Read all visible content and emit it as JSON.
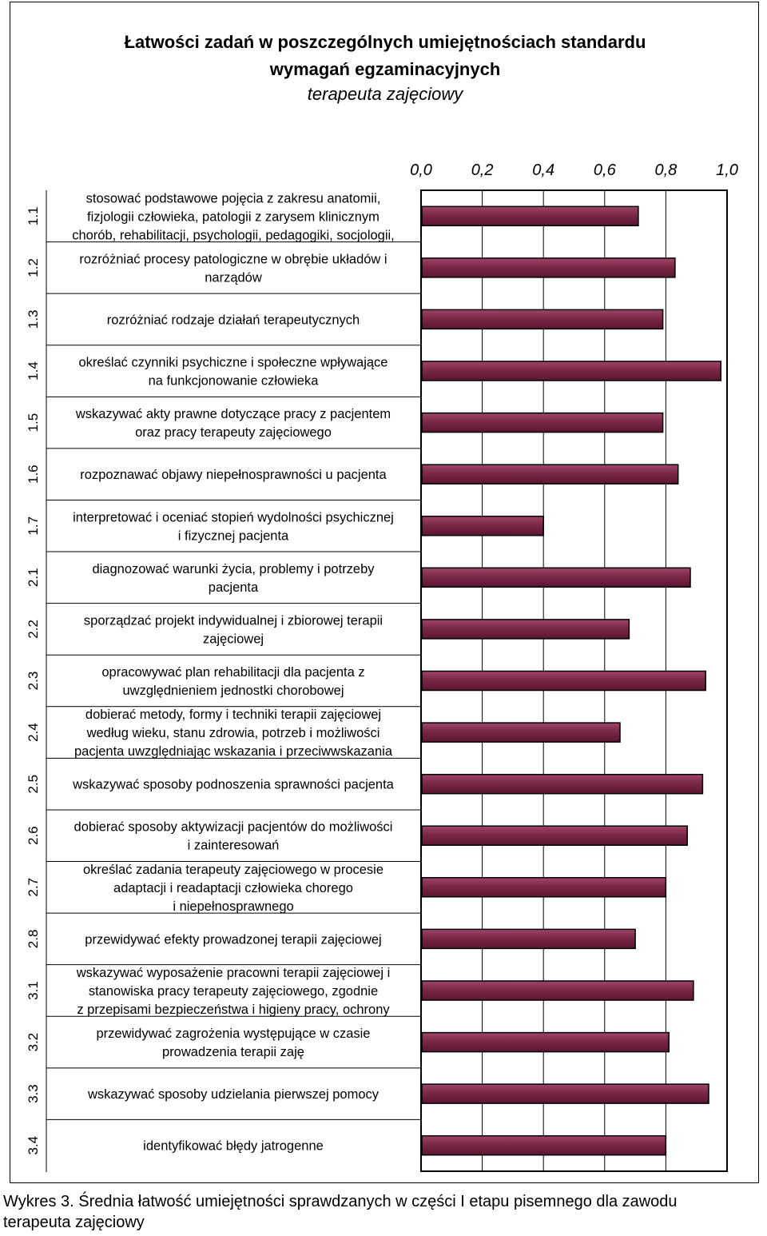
{
  "chart_data": {
    "type": "bar",
    "orientation": "horizontal",
    "title_line1": "Łatwości zadań w poszczególnych umiejętnościach standardu",
    "title_line2": "wymagań egzaminacyjnych",
    "subtitle": "terapeuta zajęciowy",
    "xlim": [
      0,
      1
    ],
    "x_tick_labels": [
      "0,0",
      "0,2",
      "0,4",
      "0,6",
      "0,8",
      "1,0"
    ],
    "x_ticks": [
      0,
      0.2,
      0.4,
      0.6,
      0.8,
      1.0
    ],
    "grid": "vertical",
    "bar_color": "#7b2748",
    "codes": [
      "1.1",
      "1.2",
      "1.3",
      "1.4",
      "1.5",
      "1.6",
      "1.7",
      "2.1",
      "2.2",
      "2.3",
      "2.4",
      "2.5",
      "2.6",
      "2.7",
      "2.8",
      "3.1",
      "3.2",
      "3.3",
      "3.4"
    ],
    "categories": [
      [
        "stosować podstawowe pojęcia z zakresu anatomii,",
        "fizjologii człowieka, patologii z zarysem klinicznym",
        "chorób, rehabilitacji, psychologii, pedagogiki, socjologii,"
      ],
      [
        "rozróżniać procesy patologiczne w obrębie układów i",
        "narządów"
      ],
      [
        "rozróżniać rodzaje działań terapeutycznych"
      ],
      [
        "określać czynniki psychiczne i społeczne wpływające",
        "na funkcjonowanie człowieka"
      ],
      [
        "wskazywać akty prawne dotyczące pracy z pacjentem",
        "oraz pracy terapeuty zajęciowego"
      ],
      [
        "rozpoznawać objawy niepełnosprawności u pacjenta"
      ],
      [
        "interpretować i oceniać stopień wydolności psychicznej",
        "i fizycznej pacjenta"
      ],
      [
        "diagnozować warunki życia, problemy i potrzeby",
        "pacjenta"
      ],
      [
        "sporządzać projekt indywidualnej i zbiorowej terapii",
        "zajęciowej"
      ],
      [
        "opracowywać plan rehabilitacji dla pacjenta z",
        "uwzględnieniem jednostki chorobowej"
      ],
      [
        "dobierać metody, formy i techniki terapii zajęciowej",
        "według wieku, stanu zdrowia, potrzeb i możliwości",
        "pacjenta uwzględniając wskazania i przeciwwskazania"
      ],
      [
        "wskazywać sposoby podnoszenia sprawności pacjenta"
      ],
      [
        "dobierać sposoby aktywizacji pacjentów do możliwości",
        "i zainteresowań"
      ],
      [
        "określać zadania terapeuty zajęciowego w procesie",
        "adaptacji i readaptacji człowieka chorego",
        "i niepełnosprawnego"
      ],
      [
        "przewidywać efekty prowadzonej terapii zajęciowej"
      ],
      [
        "wskazywać wyposażenie pracowni terapii zajęciowej i",
        "stanowiska pracy terapeuty zajęciowego, zgodnie",
        "z przepisami bezpieczeństwa i higieny pracy, ochrony"
      ],
      [
        "przewidywać zagrożenia występujące w czasie",
        "prowadzenia terapii zaję"
      ],
      [
        "wskazywać sposoby udzielania pierwszej pomocy"
      ],
      [
        "identyfikować błędy jatrogenne"
      ]
    ],
    "values": [
      0.71,
      0.83,
      0.79,
      0.98,
      0.79,
      0.84,
      0.4,
      0.88,
      0.68,
      0.93,
      0.65,
      0.92,
      0.87,
      0.8,
      0.7,
      0.89,
      0.81,
      0.94,
      0.8
    ]
  },
  "caption": {
    "line1": "Wykres 3. Średnia łatwość umiejętności sprawdzanych w części I etapu pisemnego dla zawodu",
    "line2": "terapeuta zajęciowy"
  }
}
